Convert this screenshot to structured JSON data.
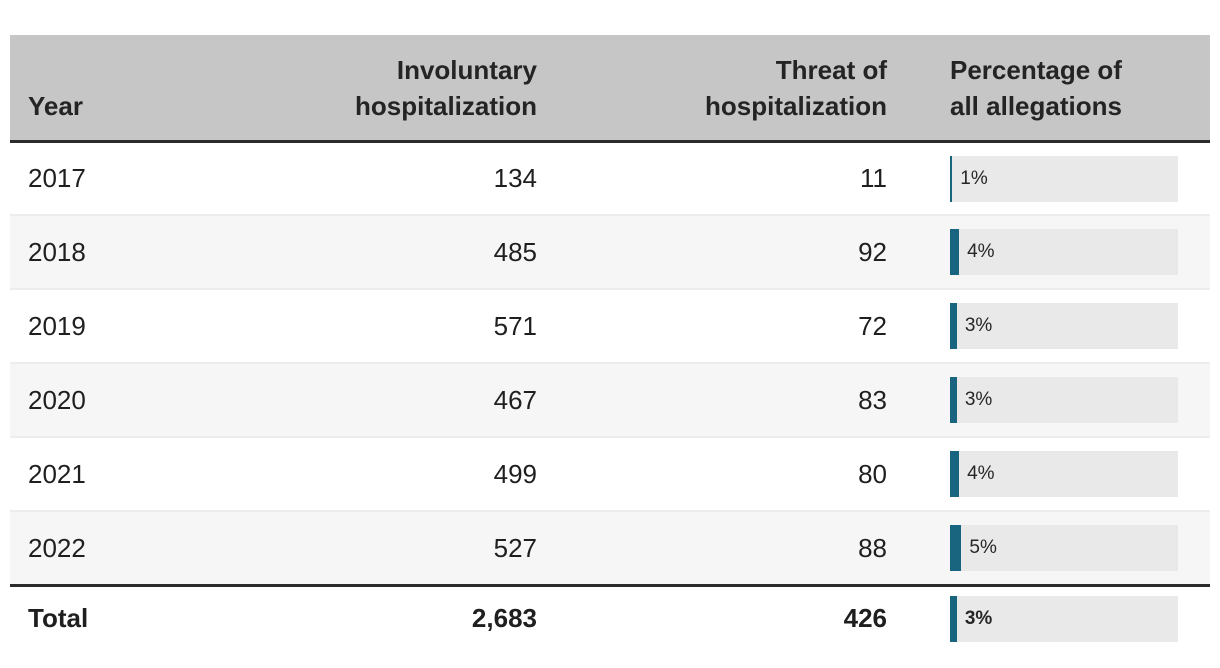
{
  "chart_data": {
    "type": "table",
    "columns": [
      "Year",
      "Involuntary hospitalization",
      "Threat of hospitalization",
      "Percentage of all allegations"
    ],
    "rows": [
      [
        "2017",
        "134",
        "11",
        "1%"
      ],
      [
        "2018",
        "485",
        "92",
        "4%"
      ],
      [
        "2019",
        "571",
        "72",
        "3%"
      ],
      [
        "2020",
        "467",
        "83",
        "3%"
      ],
      [
        "2021",
        "499",
        "80",
        "4%"
      ],
      [
        "2022",
        "527",
        "88",
        "5%"
      ]
    ],
    "total_row": [
      "Total",
      "2,683",
      "426",
      "3%"
    ],
    "bar_column": {
      "column_index": 3,
      "values_percent": [
        1,
        4,
        3,
        3,
        4,
        5
      ],
      "total_percent": 3,
      "scale_max": 100
    },
    "layout": {
      "bar_chart_style": "inline horizontal bars in last column",
      "zebra_striping": true,
      "header_alignment": [
        "left",
        "right",
        "right",
        "left"
      ]
    }
  },
  "table": {
    "header_display": [
      "Year",
      "Involuntary\nhospitalization",
      "Threat of\nhospitalization",
      "Percentage of\nall allegations"
    ]
  },
  "colors": {
    "bar_fill": "#19647E",
    "bar_track": "#E9E9E9",
    "header_bg": "#C6C6C6",
    "row_alt_bg": "#F6F6F6",
    "dark_rule": "#2B2B2B",
    "text": "#1F1F1F"
  }
}
